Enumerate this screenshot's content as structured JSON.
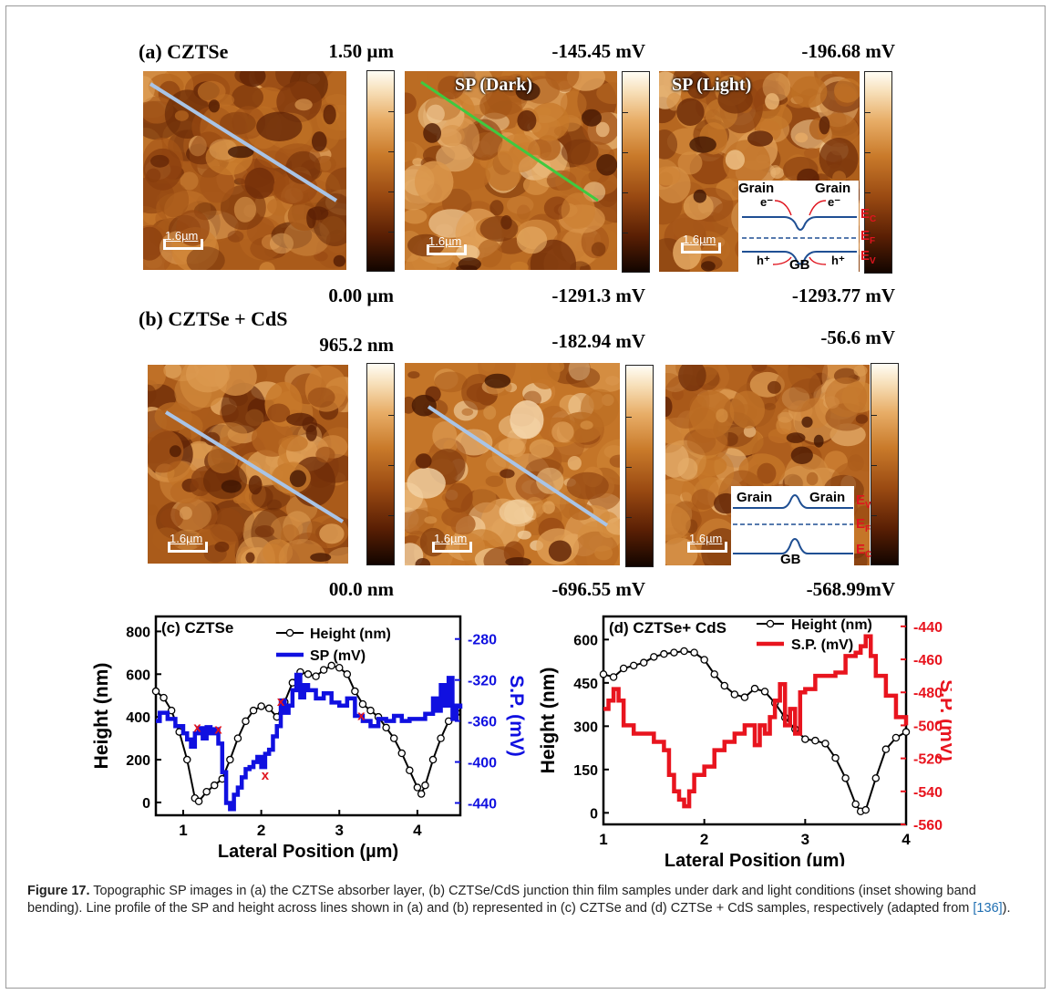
{
  "figure": {
    "row_a": {
      "label": "(a) CZTSe",
      "images": [
        {
          "top_value": "1.50 µm",
          "bottom_value": "0.00 µm",
          "overlay": "",
          "scale": "1.6µm"
        },
        {
          "top_value": "-145.45 mV",
          "bottom_value": "-1291.3 mV",
          "overlay": "SP (Dark)",
          "scale": "1.6µm"
        },
        {
          "top_value": "-196.68 mV",
          "bottom_value": "-1293.77 mV",
          "overlay": "SP (Light)",
          "scale": "1.6µm"
        }
      ],
      "inset": {
        "grain_left": "Grain",
        "grain_right": "Grain",
        "electron": "e⁻",
        "hole": "h⁺",
        "gb": "GB",
        "ec": "E",
        "ec_sub": "C",
        "ef": "E",
        "ef_sub": "F",
        "ev": "E",
        "ev_sub": "V"
      }
    },
    "row_b": {
      "label": "(b) CZTSe + CdS",
      "images": [
        {
          "top_value": "965.2 nm",
          "bottom_value": "00.0 nm",
          "overlay": "",
          "scale": "1.6µm"
        },
        {
          "top_value": "-182.94 mV",
          "bottom_value": "-696.55 mV",
          "overlay": "",
          "scale": "1.6µm"
        },
        {
          "top_value": "-56.6 mV",
          "bottom_value": "-568.99mV",
          "overlay": "",
          "scale": "1.6µm"
        }
      ],
      "inset": {
        "grain_left": "Grain",
        "grain_right": "Grain",
        "gb": "GB",
        "ev": "E",
        "ev_sub": "V",
        "ef": "E",
        "ef_sub": "F",
        "ec": "E",
        "ec_sub": "C"
      }
    },
    "caption": {
      "label": "Figure 17.",
      "text": " Topographic SP images in (a) the CZTSe absorber layer, (b) CZTSe/CdS junction thin film samples under dark and light conditions (inset showing band bending). Line profile of the SP and height across lines shown in (a) and (b) represented in (c) CZTSe and (d) CZTSe + CdS samples, respectively (adapted from ",
      "ref": "[136]",
      "end": ")."
    },
    "colors": {
      "afm_line_a1": "#a9c4e6",
      "afm_line_a2": "#3fc93f",
      "afm_line_b": "#a9c4e6",
      "band": "#1f4f93",
      "energy_label": "#e0141e"
    }
  },
  "chart_data": [
    {
      "type": "line",
      "panel": "(c) CZTSe",
      "xlabel": "Lateral Position (µm)",
      "ylabel": "Height (nm)",
      "y2label": "S.P. (mV)",
      "xlim": [
        0.65,
        4.55
      ],
      "ylim": [
        -60,
        870
      ],
      "y2lim": [
        -452,
        -258
      ],
      "xticks": [
        1,
        2,
        3,
        4
      ],
      "yticks": [
        0,
        200,
        400,
        600,
        800
      ],
      "y2ticks": [
        -440,
        -400,
        -360,
        -320,
        -280
      ],
      "markers": [
        "x",
        "x",
        "x",
        "x",
        "x"
      ],
      "series": [
        {
          "name": "Height (nm)",
          "axis": "left",
          "color": "#000000",
          "style": "line-marker",
          "x": [
            0.65,
            0.75,
            0.85,
            0.95,
            1.05,
            1.15,
            1.2,
            1.3,
            1.4,
            1.5,
            1.6,
            1.7,
            1.8,
            1.9,
            2.0,
            2.1,
            2.2,
            2.3,
            2.4,
            2.5,
            2.6,
            2.7,
            2.8,
            2.9,
            3.0,
            3.1,
            3.2,
            3.3,
            3.4,
            3.5,
            3.6,
            3.7,
            3.8,
            3.9,
            4.0,
            4.05,
            4.1,
            4.2,
            4.3,
            4.4,
            4.5
          ],
          "y": [
            520,
            490,
            430,
            330,
            200,
            20,
            5,
            50,
            80,
            110,
            200,
            300,
            380,
            430,
            450,
            440,
            400,
            470,
            560,
            610,
            600,
            590,
            620,
            640,
            630,
            600,
            520,
            460,
            430,
            400,
            350,
            300,
            230,
            150,
            70,
            40,
            80,
            200,
            300,
            380,
            420
          ]
        },
        {
          "name": "SP (mV)",
          "axis": "right",
          "color": "#1010e0",
          "style": "step",
          "x": [
            0.65,
            0.7,
            0.8,
            0.9,
            1.0,
            1.05,
            1.1,
            1.15,
            1.2,
            1.25,
            1.3,
            1.35,
            1.4,
            1.45,
            1.5,
            1.55,
            1.6,
            1.65,
            1.7,
            1.75,
            1.8,
            1.85,
            1.9,
            1.95,
            2.0,
            2.05,
            2.1,
            2.15,
            2.2,
            2.25,
            2.3,
            2.35,
            2.4,
            2.45,
            2.5,
            2.55,
            2.6,
            2.7,
            2.8,
            2.9,
            3.0,
            3.1,
            3.2,
            3.3,
            3.4,
            3.5,
            3.6,
            3.7,
            3.8,
            3.9,
            4.0,
            4.1,
            4.2,
            4.25,
            4.3,
            4.35,
            4.4,
            4.45,
            4.5,
            4.55
          ],
          "y": [
            -360,
            -352,
            -358,
            -365,
            -372,
            -378,
            -385,
            -372,
            -367,
            -377,
            -366,
            -372,
            -368,
            -382,
            -410,
            -440,
            -446,
            -432,
            -425,
            -415,
            -407,
            -405,
            -400,
            -395,
            -405,
            -392,
            -388,
            -375,
            -365,
            -340,
            -352,
            -345,
            -330,
            -315,
            -337,
            -325,
            -330,
            -338,
            -333,
            -342,
            -345,
            -338,
            -355,
            -360,
            -365,
            -358,
            -360,
            -355,
            -360,
            -358,
            -358,
            -353,
            -338,
            -350,
            -325,
            -345,
            -318,
            -358,
            -345,
            -348
          ]
        }
      ]
    },
    {
      "type": "line",
      "panel": "(d) CZTSe+ CdS",
      "xlabel": "Lateral Position (µm)",
      "ylabel": "Height (nm)",
      "y2label": "S.P. (mV)",
      "xlim": [
        1,
        4
      ],
      "ylim": [
        -40,
        680
      ],
      "y2lim": [
        -560,
        -434
      ],
      "xticks": [
        1,
        2,
        3,
        4
      ],
      "yticks": [
        0,
        150,
        300,
        450,
        600
      ],
      "y2ticks": [
        -560,
        -540,
        -520,
        -500,
        -480,
        -460,
        -440
      ],
      "series": [
        {
          "name": "Height (nm)",
          "axis": "left",
          "color": "#000000",
          "style": "line-marker",
          "x": [
            1.0,
            1.1,
            1.2,
            1.3,
            1.4,
            1.5,
            1.6,
            1.7,
            1.8,
            1.9,
            2.0,
            2.1,
            2.2,
            2.3,
            2.4,
            2.5,
            2.6,
            2.7,
            2.8,
            2.9,
            3.0,
            3.1,
            3.2,
            3.3,
            3.4,
            3.5,
            3.55,
            3.6,
            3.7,
            3.8,
            3.9,
            4.0
          ],
          "y": [
            480,
            470,
            500,
            510,
            520,
            540,
            550,
            555,
            560,
            555,
            530,
            480,
            440,
            410,
            400,
            430,
            420,
            380,
            330,
            290,
            255,
            250,
            240,
            190,
            120,
            30,
            5,
            10,
            120,
            220,
            260,
            280
          ]
        },
        {
          "name": "S.P. (mV)",
          "axis": "right",
          "color": "#e8141e",
          "style": "step",
          "x": [
            1.0,
            1.05,
            1.1,
            1.15,
            1.2,
            1.3,
            1.4,
            1.5,
            1.6,
            1.65,
            1.7,
            1.75,
            1.8,
            1.85,
            1.9,
            2.0,
            2.1,
            2.2,
            2.3,
            2.4,
            2.5,
            2.55,
            2.6,
            2.65,
            2.7,
            2.75,
            2.8,
            2.85,
            2.9,
            2.95,
            3.0,
            3.1,
            3.2,
            3.3,
            3.4,
            3.5,
            3.55,
            3.6,
            3.65,
            3.7,
            3.8,
            3.9,
            4.0
          ],
          "y": [
            -490,
            -485,
            -478,
            -485,
            -500,
            -505,
            -505,
            -510,
            -515,
            -530,
            -540,
            -545,
            -549,
            -540,
            -530,
            -525,
            -515,
            -510,
            -505,
            -500,
            -512,
            -500,
            -505,
            -495,
            -485,
            -475,
            -500,
            -490,
            -505,
            -480,
            -478,
            -470,
            -470,
            -468,
            -458,
            -456,
            -452,
            -446,
            -458,
            -470,
            -482,
            -495,
            -500
          ]
        }
      ]
    }
  ]
}
